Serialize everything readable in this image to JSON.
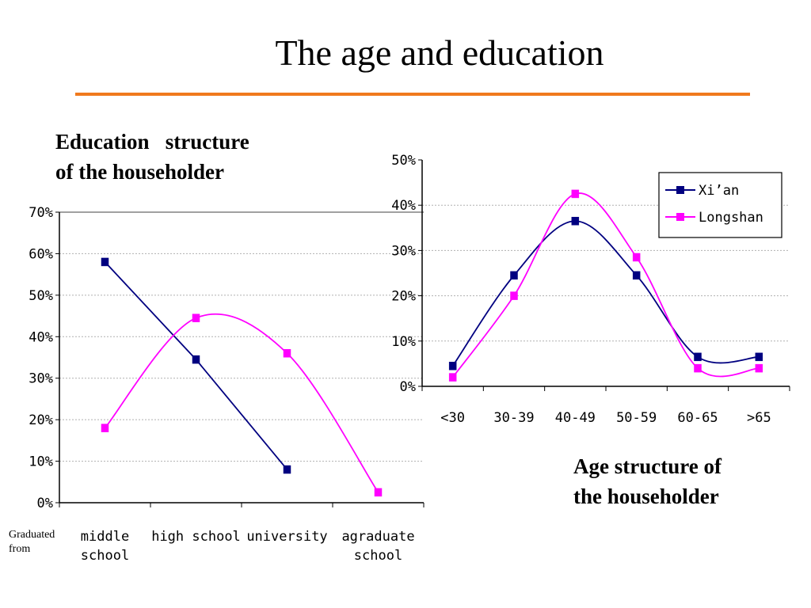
{
  "slide": {
    "title": "The age and education",
    "caption_left": "Education   structure\nof the householder",
    "caption_right": "Age structure of\nthe householder",
    "graduated_from": "Graduated\nfrom"
  },
  "colors": {
    "accent_rule": "#f07a1e",
    "series_navy": "#000080",
    "series_magenta": "#ff00ff"
  },
  "chart_data": [
    {
      "type": "line",
      "title": "Education structure of the householder",
      "xlabel": "Graduated from",
      "ylabel": "",
      "categories": [
        "middle\nschool",
        "high school",
        "university",
        "agraduate\nschool"
      ],
      "ylim": [
        0,
        70
      ],
      "yticks": [
        "0%",
        "10%",
        "20%",
        "30%",
        "40%",
        "50%",
        "60%",
        "70%"
      ],
      "series": [
        {
          "values": [
            58,
            34.5,
            8,
            null
          ],
          "color": "#000080",
          "smooth": false
        },
        {
          "values": [
            18,
            44.5,
            36,
            2.5
          ],
          "color": "#ff00ff",
          "smooth": true
        }
      ],
      "grid": true,
      "legend": "none"
    },
    {
      "type": "line",
      "title": "Age structure of the householder",
      "xlabel": "",
      "ylabel": "",
      "categories": [
        "<30",
        "30-39",
        "40-49",
        "50-59",
        "60-65",
        ">65"
      ],
      "ylim": [
        0,
        50
      ],
      "yticks": [
        "0%",
        "10%",
        "20%",
        "30%",
        "40%",
        "50%"
      ],
      "series": [
        {
          "name": "Xi’an",
          "values": [
            4.5,
            24.5,
            36.5,
            24.5,
            6.5,
            6.5
          ],
          "color": "#000080",
          "smooth": true
        },
        {
          "name": "Longshan",
          "values": [
            2,
            20,
            42.5,
            28.5,
            4,
            4
          ],
          "color": "#ff00ff",
          "smooth": true
        }
      ],
      "grid": true,
      "legend": "top-right"
    }
  ]
}
